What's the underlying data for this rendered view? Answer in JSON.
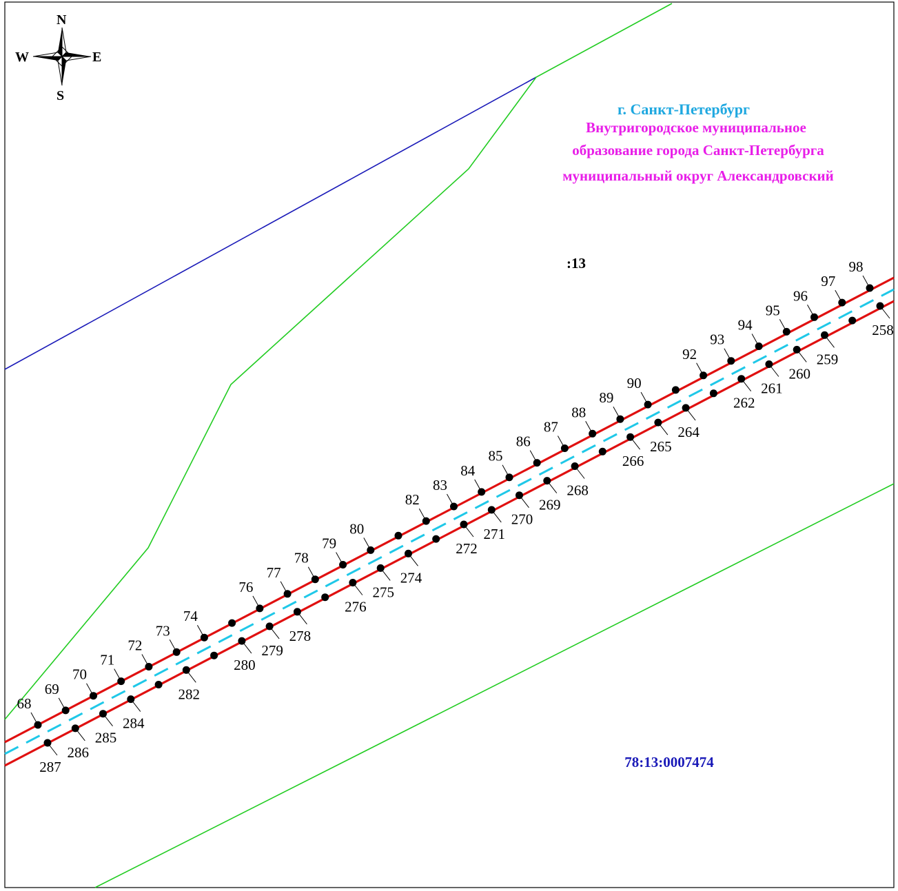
{
  "compass": {
    "north": "N",
    "south": "S",
    "west": "W",
    "east": "E"
  },
  "titles": {
    "city": "г. Санкт-Петербург",
    "municipality_line1": "Внутригородское муниципальное",
    "municipality_line2": "образование города Санкт-Петербурга",
    "municipality_line3": "муниципальный округ Александровский",
    "parcel": ":13",
    "cadastral_block": "78:13:0007474"
  },
  "colors": {
    "city": "#1fa8e0",
    "municipality": "#e81ee8",
    "cadastral_block": "#1a1ab8",
    "parcel": "#000000",
    "boundary_blue": "#1a1ab8",
    "boundary_green": "#22cc22",
    "corridor_red": "#e01010",
    "axis_cyan": "#1fc8e8"
  },
  "upper_points": [
    {
      "id": "68"
    },
    {
      "id": "69"
    },
    {
      "id": "70"
    },
    {
      "id": "71"
    },
    {
      "id": "72"
    },
    {
      "id": "73"
    },
    {
      "id": "74"
    },
    {
      "id": ""
    },
    {
      "id": "76"
    },
    {
      "id": "77"
    },
    {
      "id": "78"
    },
    {
      "id": "79"
    },
    {
      "id": "80"
    },
    {
      "id": ""
    },
    {
      "id": "82"
    },
    {
      "id": "83"
    },
    {
      "id": "84"
    },
    {
      "id": "85"
    },
    {
      "id": "86"
    },
    {
      "id": "87"
    },
    {
      "id": "88"
    },
    {
      "id": "89"
    },
    {
      "id": "90"
    },
    {
      "id": ""
    },
    {
      "id": "92"
    },
    {
      "id": "93"
    },
    {
      "id": "94"
    },
    {
      "id": "95"
    },
    {
      "id": "96"
    },
    {
      "id": "97"
    },
    {
      "id": "98"
    }
  ],
  "lower_points": [
    {
      "id": "287"
    },
    {
      "id": "286"
    },
    {
      "id": "285"
    },
    {
      "id": "284"
    },
    {
      "id": ""
    },
    {
      "id": "282"
    },
    {
      "id": ""
    },
    {
      "id": "280"
    },
    {
      "id": "279"
    },
    {
      "id": "278"
    },
    {
      "id": ""
    },
    {
      "id": "276"
    },
    {
      "id": "275"
    },
    {
      "id": "274"
    },
    {
      "id": ""
    },
    {
      "id": "272"
    },
    {
      "id": "271"
    },
    {
      "id": "270"
    },
    {
      "id": "269"
    },
    {
      "id": "268"
    },
    {
      "id": ""
    },
    {
      "id": "266"
    },
    {
      "id": "265"
    },
    {
      "id": "264"
    },
    {
      "id": ""
    },
    {
      "id": "262"
    },
    {
      "id": "261"
    },
    {
      "id": "260"
    },
    {
      "id": "259"
    },
    {
      "id": ""
    },
    {
      "id": "258"
    }
  ]
}
